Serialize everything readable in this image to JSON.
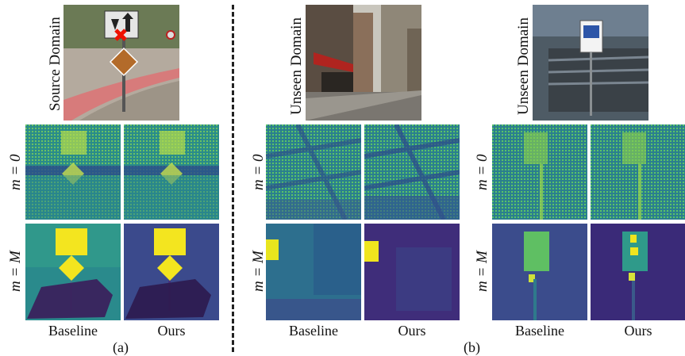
{
  "figure": {
    "groups": [
      {
        "id": "a",
        "domain_label": "Source Domain",
        "subfig_label": "(a)",
        "scene_icon": "road-stop-sign-scene",
        "columns": [
          "Baseline",
          "Ours"
        ]
      },
      {
        "id": "b1",
        "domain_label": "Unseen Domain",
        "scene_icon": "city-street-scene",
        "columns": [
          "Baseline",
          "Ours"
        ]
      },
      {
        "id": "b2",
        "domain_label": "Unseen Domain",
        "scene_icon": "parking-sign-scene",
        "columns": [
          "Baseline",
          "Ours"
        ]
      }
    ],
    "row_labels": [
      "m = 0",
      "m = M"
    ],
    "subfig_label_b": "(b)",
    "colormap": [
      "#440154",
      "#3b528b",
      "#21918c",
      "#5ec962",
      "#fde725"
    ]
  }
}
